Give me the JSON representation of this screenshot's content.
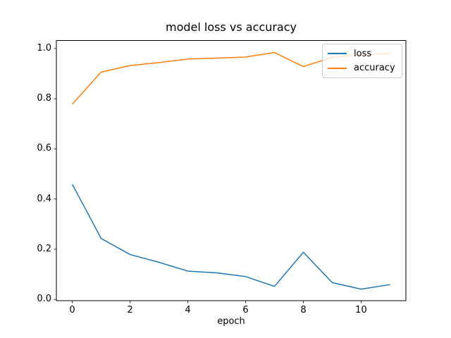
{
  "figure": {
    "background": "#ffffff",
    "text_color": "#000000",
    "spine_color": "#000000",
    "legend_border_color": "#cccccc"
  },
  "chart_data": {
    "type": "line",
    "title": "model loss vs accuracy",
    "xlabel": "epoch",
    "ylabel": "",
    "x": [
      0,
      1,
      2,
      3,
      4,
      5,
      6,
      7,
      8,
      9,
      10,
      11
    ],
    "series": [
      {
        "name": "loss",
        "color": "#1f77b4",
        "values": [
          0.459,
          0.243,
          0.179,
          0.148,
          0.113,
          0.106,
          0.091,
          0.052,
          0.188,
          0.067,
          0.041,
          0.059
        ]
      },
      {
        "name": "accuracy",
        "color": "#ff7f0e",
        "values": [
          0.778,
          0.906,
          0.932,
          0.944,
          0.958,
          0.962,
          0.966,
          0.984,
          0.928,
          0.965,
          0.975,
          0.98
        ]
      }
    ],
    "xlim": [
      -0.55,
      11.55
    ],
    "ylim": [
      -0.005,
      1.032
    ],
    "xticks": [
      0,
      2,
      4,
      6,
      8,
      10
    ],
    "xtick_labels": [
      "0",
      "2",
      "4",
      "6",
      "8",
      "10"
    ],
    "yticks": [
      0.0,
      0.2,
      0.4,
      0.6,
      0.8,
      1.0
    ],
    "ytick_labels": [
      "0.0",
      "0.2",
      "0.4",
      "0.6",
      "0.8",
      "1.0"
    ],
    "grid": false,
    "legend": {
      "position": "upper right",
      "entries": [
        "loss",
        "accuracy"
      ]
    }
  }
}
